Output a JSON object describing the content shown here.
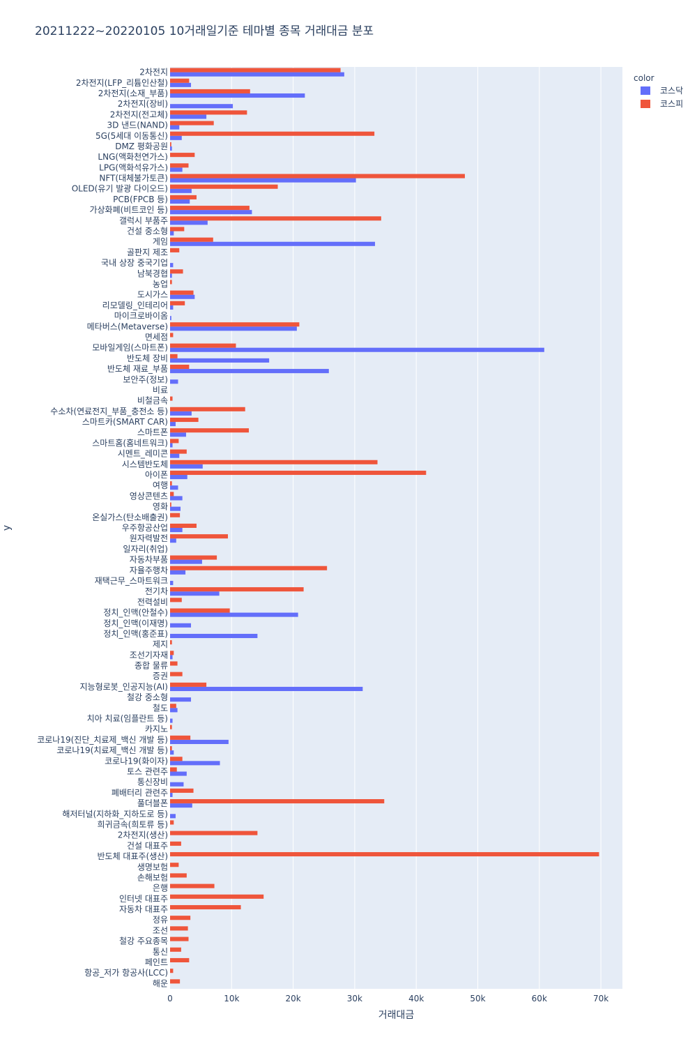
{
  "chart_data": {
    "type": "bar",
    "orientation": "horizontal",
    "title": "20211222~20220105 10거래일기준 테마별 종목 거래대금 분포",
    "xlabel": "거래대금",
    "ylabel": "y",
    "xlim": [
      0,
      73500
    ],
    "xticks": [
      0,
      10000,
      20000,
      30000,
      40000,
      50000,
      60000,
      70000
    ],
    "xtick_labels": [
      "0",
      "10k",
      "20k",
      "30k",
      "40k",
      "50k",
      "60k",
      "70k"
    ],
    "grid": true,
    "legend": {
      "title": "color",
      "position": "top-right"
    },
    "colors": {
      "코스닥": "#636efa",
      "코스피": "#ef553b",
      "background": "#e5ecf6",
      "grid": "#ffffff"
    },
    "categories": [
      "해운",
      "항공_저가 항공사(LCC)",
      "페인트",
      "통신",
      "철강 주요종목",
      "조선",
      "정유",
      "자동차 대표주",
      "인터넷 대표주",
      "은행",
      "손해보험",
      "생명보험",
      "반도체 대표주(생산)",
      "건설 대표주",
      "2차전지(생산)",
      "희귀금속(희토류 등)",
      "해저터널(지하화_지하도로 등)",
      "풀더블폰",
      "폐배터리 관련주",
      "통신장비",
      "토스 관련주",
      "코로나19(화이자)",
      "코로나19(치료제_백신 개발 등)",
      "코로나19(진단_치료제_백신 개발 등)",
      "카지노",
      "치아 치료(임플란트 등)",
      "철도",
      "철강 중소형",
      "지능형로봇_인공지능(AI)",
      "증권",
      "종합 물류",
      "조선기자재",
      "제지",
      "정치_인맥(홍준표)",
      "정치_인맥(이재명)",
      "정치_인맥(안철수)",
      "전력설비",
      "전기차",
      "재택근무_스마트워크",
      "자율주행차",
      "자동차부품",
      "일자리(취업)",
      "원자력발전",
      "우주항공산업",
      "온실가스(탄소배출권)",
      "영화",
      "영상콘텐츠",
      "여행",
      "아이폰",
      "시스템반도체",
      "시멘트_레미콘",
      "스마트홈(홈네트워크)",
      "스마트폰",
      "스마트카(SMART CAR)",
      "수소차(연료전지_부품_충전소 등)",
      "비철금속",
      "비료",
      "보안주(정보)",
      "반도체 재료_부품",
      "반도체 장비",
      "모바일게임(스마트폰)",
      "면세점",
      "메타버스(Metaverse)",
      "마이크로바이옴",
      "리모델링_인테리어",
      "도시가스",
      "농업",
      "남북경협",
      "국내 상장 중국기업",
      "골판지 제조",
      "게임",
      "건설 중소형",
      "갤럭시 부품주",
      "가상화폐(비트코인 등)",
      "PCB(FPCB 등)",
      "OLED(유기 발광 다이오드)",
      "NFT(대체불가토큰)",
      "LPG(액화석유가스)",
      "LNG(액화천연가스)",
      "DMZ 평화공원",
      "5G(5세대 이동통신)",
      "3D 낸드(NAND)",
      "2차전지(전고체)",
      "2차전지(장비)",
      "2차전지(소재_부품)",
      "2차전지(LFP_리튬인산철)",
      "2차전지"
    ],
    "series": [
      {
        "name": "코스닥",
        "values": [
          0,
          0,
          0,
          0,
          0,
          0,
          0,
          0,
          0,
          0,
          0,
          0,
          0,
          0,
          0,
          0,
          900,
          3600,
          400,
          2200,
          2700,
          8100,
          600,
          9500,
          0,
          400,
          1200,
          3400,
          31300,
          0,
          0,
          400,
          0,
          14200,
          3400,
          20800,
          0,
          8000,
          500,
          2500,
          5200,
          0,
          1000,
          2000,
          0,
          1700,
          2000,
          1300,
          2800,
          5300,
          1500,
          400,
          2600,
          900,
          3500,
          0,
          0,
          1300,
          25800,
          16100,
          60800,
          0,
          20600,
          200,
          500,
          4000,
          0,
          300,
          500,
          0,
          33300,
          600,
          6100,
          13300,
          3200,
          3500,
          30200,
          2000,
          0,
          300,
          1900,
          1500,
          5900,
          10200,
          21900,
          3400,
          28300
        ]
      },
      {
        "name": "코스피",
        "values": [
          1600,
          500,
          3100,
          1800,
          3000,
          2900,
          3300,
          11500,
          15200,
          7200,
          2700,
          1400,
          69700,
          1800,
          14200,
          600,
          0,
          34800,
          3800,
          0,
          1100,
          2000,
          300,
          3300,
          300,
          0,
          1000,
          0,
          5900,
          2000,
          1200,
          600,
          300,
          0,
          0,
          9700,
          1900,
          21700,
          0,
          25500,
          7600,
          0,
          9400,
          4300,
          1600,
          200,
          600,
          300,
          41600,
          33700,
          2700,
          1400,
          12800,
          4600,
          12200,
          400,
          0,
          0,
          3100,
          1200,
          10700,
          500,
          21000,
          0,
          2400,
          3800,
          300,
          2100,
          0,
          1500,
          7000,
          2300,
          34300,
          12900,
          4300,
          17500,
          47900,
          3000,
          4000,
          200,
          33200,
          7100,
          12500,
          0,
          13000,
          3100,
          27700
        ]
      }
    ]
  }
}
